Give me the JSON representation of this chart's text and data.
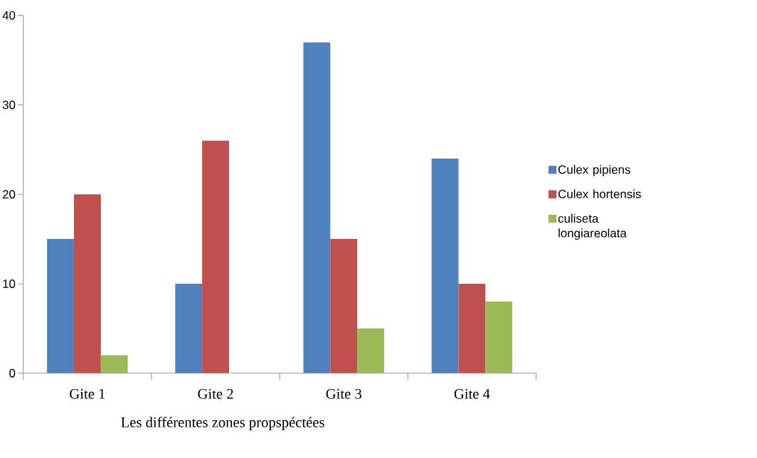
{
  "chart_data": {
    "type": "bar",
    "xlabel": "Les différentes zones propspéctées",
    "categories": [
      "Gite 1",
      "Gite 2",
      "Gite 3",
      "Gite 4"
    ],
    "series": [
      {
        "name": "Culex pipiens",
        "color": "#4f81bd",
        "values": [
          15,
          10,
          37,
          24
        ]
      },
      {
        "name": "Culex hortensis",
        "color": "#c0504d",
        "values": [
          20,
          26,
          15,
          10
        ]
      },
      {
        "name": "culiseta longiareolata",
        "color": "#9bbb59",
        "values": [
          2,
          0,
          5,
          8
        ]
      }
    ],
    "ylim": [
      0,
      40
    ],
    "yticks": [
      0,
      10,
      20,
      30,
      40
    ],
    "legend": "right"
  }
}
